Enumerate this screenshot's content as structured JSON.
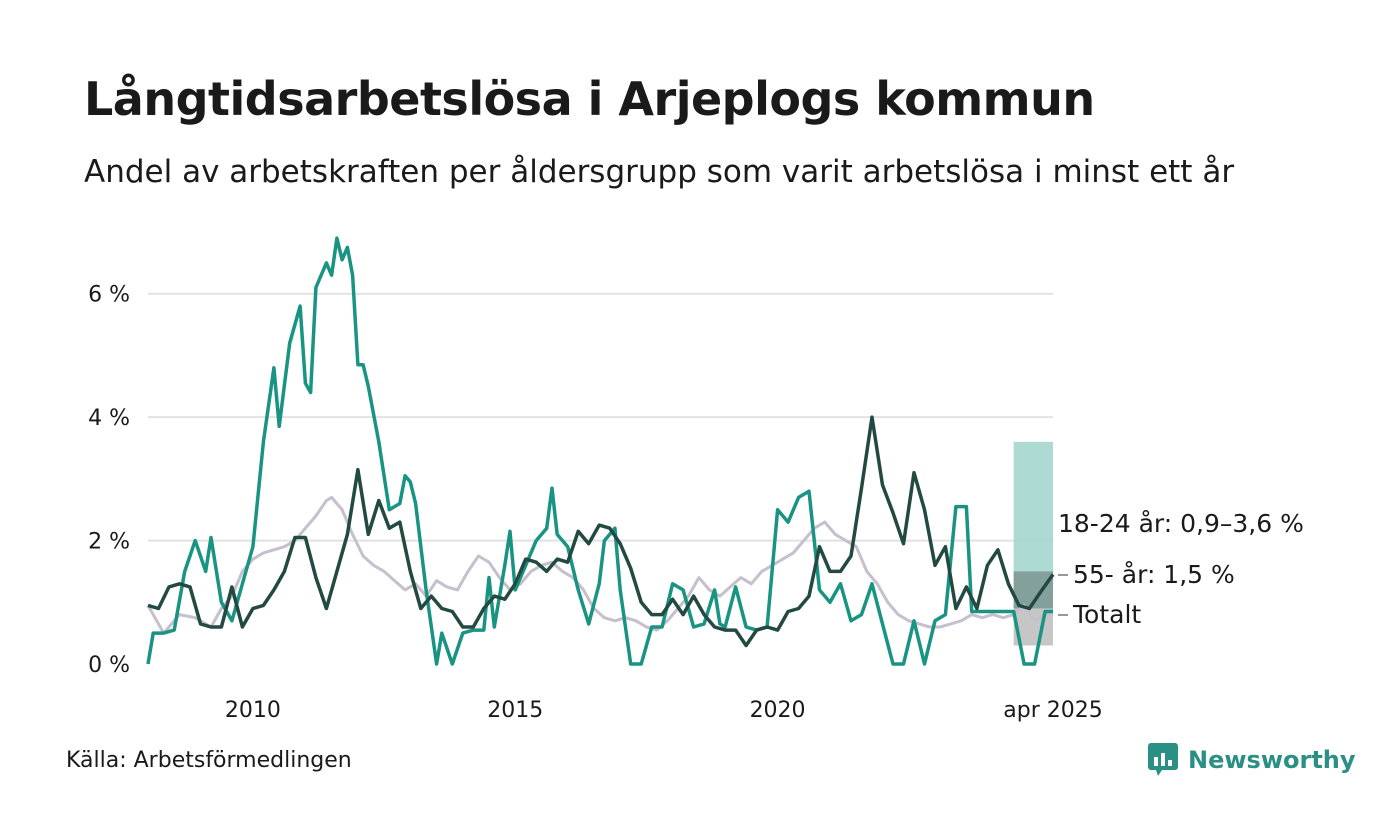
{
  "title": "Långtidsarbetslösa i Arjeplogs kommun",
  "subtitle": "Andel av arbetskraften per åldersgrupp som varit arbetslösa i minst ett år",
  "source": "Källa: Arbetsförmedlingen",
  "brand": "Newsworthy",
  "colors": {
    "youth": "#1a9482",
    "senior": "#234a42",
    "total": "#c5bfce",
    "youth_band": "#9fd5cd",
    "senior_band": "#7c958f",
    "total_band": "#b3b3b3",
    "grid": "#e2e2e2",
    "brand": "#2a8f84"
  },
  "chart_data": {
    "type": "line",
    "x_unit": "year (decimal)",
    "xlim": [
      2008.0,
      2025.25
    ],
    "ylim": [
      0,
      7
    ],
    "y_ticks": [
      {
        "value": 0,
        "label": "0 %"
      },
      {
        "value": 2,
        "label": "2 %"
      },
      {
        "value": 4,
        "label": "4 %"
      },
      {
        "value": 6,
        "label": "6 %"
      }
    ],
    "x_ticks": [
      {
        "value": 2010,
        "label": "2010"
      },
      {
        "value": 2015,
        "label": "2015"
      },
      {
        "value": 2020,
        "label": "2020"
      },
      {
        "value": 2025.25,
        "label": "apr 2025"
      }
    ],
    "series": [
      {
        "key": "total",
        "label": "Totalt",
        "points": [
          [
            2008.0,
            0.95
          ],
          [
            2008.3,
            0.5
          ],
          [
            2008.6,
            0.8
          ],
          [
            2008.9,
            0.75
          ],
          [
            2009.2,
            0.6
          ],
          [
            2009.4,
            0.9
          ],
          [
            2009.6,
            1.1
          ],
          [
            2009.8,
            1.5
          ],
          [
            2010.0,
            1.7
          ],
          [
            2010.2,
            1.8
          ],
          [
            2010.4,
            1.85
          ],
          [
            2010.6,
            1.9
          ],
          [
            2010.8,
            2.0
          ],
          [
            2011.0,
            2.2
          ],
          [
            2011.2,
            2.4
          ],
          [
            2011.4,
            2.65
          ],
          [
            2011.5,
            2.7
          ],
          [
            2011.7,
            2.5
          ],
          [
            2011.9,
            2.1
          ],
          [
            2012.1,
            1.75
          ],
          [
            2012.3,
            1.6
          ],
          [
            2012.5,
            1.5
          ],
          [
            2012.7,
            1.35
          ],
          [
            2012.9,
            1.2
          ],
          [
            2013.1,
            1.3
          ],
          [
            2013.3,
            1.1
          ],
          [
            2013.5,
            1.35
          ],
          [
            2013.7,
            1.25
          ],
          [
            2013.9,
            1.2
          ],
          [
            2014.1,
            1.5
          ],
          [
            2014.3,
            1.75
          ],
          [
            2014.5,
            1.65
          ],
          [
            2014.7,
            1.4
          ],
          [
            2014.9,
            1.2
          ],
          [
            2015.1,
            1.3
          ],
          [
            2015.3,
            1.5
          ],
          [
            2015.5,
            1.6
          ],
          [
            2015.7,
            1.65
          ],
          [
            2015.9,
            1.5
          ],
          [
            2016.1,
            1.4
          ],
          [
            2016.3,
            1.2
          ],
          [
            2016.5,
            0.9
          ],
          [
            2016.7,
            0.75
          ],
          [
            2016.9,
            0.7
          ],
          [
            2017.1,
            0.75
          ],
          [
            2017.3,
            0.7
          ],
          [
            2017.5,
            0.6
          ],
          [
            2017.7,
            0.55
          ],
          [
            2017.9,
            0.7
          ],
          [
            2018.1,
            0.9
          ],
          [
            2018.3,
            1.1
          ],
          [
            2018.5,
            1.4
          ],
          [
            2018.7,
            1.2
          ],
          [
            2018.9,
            1.1
          ],
          [
            2019.1,
            1.25
          ],
          [
            2019.3,
            1.4
          ],
          [
            2019.5,
            1.3
          ],
          [
            2019.7,
            1.5
          ],
          [
            2019.9,
            1.6
          ],
          [
            2020.1,
            1.7
          ],
          [
            2020.3,
            1.8
          ],
          [
            2020.5,
            2.0
          ],
          [
            2020.7,
            2.2
          ],
          [
            2020.9,
            2.3
          ],
          [
            2021.1,
            2.1
          ],
          [
            2021.3,
            2.0
          ],
          [
            2021.5,
            1.9
          ],
          [
            2021.7,
            1.5
          ],
          [
            2021.9,
            1.3
          ],
          [
            2022.1,
            1.0
          ],
          [
            2022.3,
            0.8
          ],
          [
            2022.5,
            0.7
          ],
          [
            2022.7,
            0.65
          ],
          [
            2022.9,
            0.6
          ],
          [
            2023.1,
            0.6
          ],
          [
            2023.3,
            0.65
          ],
          [
            2023.5,
            0.7
          ],
          [
            2023.7,
            0.8
          ],
          [
            2023.9,
            0.75
          ],
          [
            2024.1,
            0.8
          ],
          [
            2024.3,
            0.75
          ],
          [
            2024.5,
            0.8
          ],
          [
            2024.7,
            0.95
          ],
          [
            2024.9,
            0.7
          ],
          [
            2025.1,
            0.8
          ],
          [
            2025.25,
            0.8
          ]
        ],
        "band": [
          0.3,
          0.9
        ]
      },
      {
        "key": "youth",
        "label": "18-24 år: 0,9–3,6 %",
        "points": [
          [
            2008.0,
            0.0
          ],
          [
            2008.1,
            0.5
          ],
          [
            2008.3,
            0.5
          ],
          [
            2008.5,
            0.55
          ],
          [
            2008.7,
            1.5
          ],
          [
            2008.9,
            2.0
          ],
          [
            2009.1,
            1.5
          ],
          [
            2009.2,
            2.05
          ],
          [
            2009.4,
            1.0
          ],
          [
            2009.6,
            0.7
          ],
          [
            2009.8,
            1.3
          ],
          [
            2010.0,
            1.9
          ],
          [
            2010.2,
            3.6
          ],
          [
            2010.4,
            4.8
          ],
          [
            2010.5,
            3.85
          ],
          [
            2010.7,
            5.2
          ],
          [
            2010.9,
            5.8
          ],
          [
            2011.0,
            4.55
          ],
          [
            2011.1,
            4.4
          ],
          [
            2011.2,
            6.1
          ],
          [
            2011.4,
            6.5
          ],
          [
            2011.5,
            6.3
          ],
          [
            2011.6,
            6.9
          ],
          [
            2011.7,
            6.55
          ],
          [
            2011.8,
            6.75
          ],
          [
            2011.9,
            6.3
          ],
          [
            2012.0,
            4.85
          ],
          [
            2012.1,
            4.85
          ],
          [
            2012.2,
            4.5
          ],
          [
            2012.4,
            3.6
          ],
          [
            2012.6,
            2.5
          ],
          [
            2012.8,
            2.6
          ],
          [
            2012.9,
            3.05
          ],
          [
            2013.0,
            2.95
          ],
          [
            2013.1,
            2.6
          ],
          [
            2013.3,
            1.2
          ],
          [
            2013.5,
            0.0
          ],
          [
            2013.6,
            0.5
          ],
          [
            2013.8,
            0.0
          ],
          [
            2014.0,
            0.5
          ],
          [
            2014.2,
            0.55
          ],
          [
            2014.4,
            0.55
          ],
          [
            2014.5,
            1.4
          ],
          [
            2014.6,
            0.6
          ],
          [
            2014.8,
            1.6
          ],
          [
            2014.9,
            2.15
          ],
          [
            2015.0,
            1.2
          ],
          [
            2015.2,
            1.6
          ],
          [
            2015.4,
            2.0
          ],
          [
            2015.6,
            2.2
          ],
          [
            2015.7,
            2.85
          ],
          [
            2015.8,
            2.1
          ],
          [
            2016.0,
            1.9
          ],
          [
            2016.2,
            1.2
          ],
          [
            2016.4,
            0.65
          ],
          [
            2016.6,
            1.3
          ],
          [
            2016.7,
            2.0
          ],
          [
            2016.9,
            2.2
          ],
          [
            2017.0,
            1.2
          ],
          [
            2017.2,
            0.0
          ],
          [
            2017.4,
            0.0
          ],
          [
            2017.6,
            0.6
          ],
          [
            2017.8,
            0.6
          ],
          [
            2018.0,
            1.3
          ],
          [
            2018.2,
            1.2
          ],
          [
            2018.4,
            0.6
          ],
          [
            2018.6,
            0.65
          ],
          [
            2018.8,
            1.2
          ],
          [
            2018.9,
            0.65
          ],
          [
            2019.0,
            0.6
          ],
          [
            2019.2,
            1.25
          ],
          [
            2019.4,
            0.6
          ],
          [
            2019.6,
            0.55
          ],
          [
            2019.8,
            0.6
          ],
          [
            2020.0,
            2.5
          ],
          [
            2020.2,
            2.3
          ],
          [
            2020.4,
            2.7
          ],
          [
            2020.6,
            2.8
          ],
          [
            2020.8,
            1.2
          ],
          [
            2021.0,
            1.0
          ],
          [
            2021.2,
            1.3
          ],
          [
            2021.4,
            0.7
          ],
          [
            2021.6,
            0.8
          ],
          [
            2021.8,
            1.3
          ],
          [
            2022.0,
            0.65
          ],
          [
            2022.2,
            0.0
          ],
          [
            2022.4,
            0.0
          ],
          [
            2022.6,
            0.7
          ],
          [
            2022.8,
            0.0
          ],
          [
            2023.0,
            0.7
          ],
          [
            2023.2,
            0.8
          ],
          [
            2023.4,
            2.55
          ],
          [
            2023.6,
            2.55
          ],
          [
            2023.7,
            0.85
          ],
          [
            2023.9,
            0.85
          ],
          [
            2024.1,
            0.85
          ],
          [
            2024.3,
            0.85
          ],
          [
            2024.5,
            0.85
          ],
          [
            2024.7,
            0.0
          ],
          [
            2024.9,
            0.0
          ],
          [
            2025.1,
            0.85
          ],
          [
            2025.25,
            0.85
          ]
        ],
        "band": [
          0.9,
          3.6
        ]
      },
      {
        "key": "senior",
        "label": "55- år: 1,5 %",
        "points": [
          [
            2008.0,
            0.95
          ],
          [
            2008.2,
            0.9
          ],
          [
            2008.4,
            1.25
          ],
          [
            2008.6,
            1.3
          ],
          [
            2008.8,
            1.25
          ],
          [
            2009.0,
            0.65
          ],
          [
            2009.2,
            0.6
          ],
          [
            2009.4,
            0.6
          ],
          [
            2009.6,
            1.25
          ],
          [
            2009.8,
            0.6
          ],
          [
            2010.0,
            0.9
          ],
          [
            2010.2,
            0.95
          ],
          [
            2010.4,
            1.2
          ],
          [
            2010.6,
            1.5
          ],
          [
            2010.8,
            2.05
          ],
          [
            2011.0,
            2.05
          ],
          [
            2011.2,
            1.4
          ],
          [
            2011.4,
            0.9
          ],
          [
            2011.6,
            1.5
          ],
          [
            2011.8,
            2.1
          ],
          [
            2012.0,
            3.15
          ],
          [
            2012.2,
            2.1
          ],
          [
            2012.4,
            2.65
          ],
          [
            2012.6,
            2.2
          ],
          [
            2012.8,
            2.3
          ],
          [
            2013.0,
            1.5
          ],
          [
            2013.2,
            0.9
          ],
          [
            2013.4,
            1.1
          ],
          [
            2013.6,
            0.9
          ],
          [
            2013.8,
            0.85
          ],
          [
            2014.0,
            0.6
          ],
          [
            2014.2,
            0.6
          ],
          [
            2014.4,
            0.9
          ],
          [
            2014.6,
            1.1
          ],
          [
            2014.8,
            1.05
          ],
          [
            2015.0,
            1.3
          ],
          [
            2015.2,
            1.7
          ],
          [
            2015.4,
            1.65
          ],
          [
            2015.6,
            1.5
          ],
          [
            2015.8,
            1.7
          ],
          [
            2016.0,
            1.65
          ],
          [
            2016.2,
            2.15
          ],
          [
            2016.4,
            1.95
          ],
          [
            2016.6,
            2.25
          ],
          [
            2016.8,
            2.2
          ],
          [
            2017.0,
            1.95
          ],
          [
            2017.2,
            1.55
          ],
          [
            2017.4,
            1.0
          ],
          [
            2017.6,
            0.8
          ],
          [
            2017.8,
            0.8
          ],
          [
            2018.0,
            1.05
          ],
          [
            2018.2,
            0.8
          ],
          [
            2018.4,
            1.1
          ],
          [
            2018.6,
            0.8
          ],
          [
            2018.8,
            0.6
          ],
          [
            2019.0,
            0.55
          ],
          [
            2019.2,
            0.55
          ],
          [
            2019.4,
            0.3
          ],
          [
            2019.6,
            0.55
          ],
          [
            2019.8,
            0.6
          ],
          [
            2020.0,
            0.55
          ],
          [
            2020.2,
            0.85
          ],
          [
            2020.4,
            0.9
          ],
          [
            2020.6,
            1.1
          ],
          [
            2020.8,
            1.9
          ],
          [
            2021.0,
            1.5
          ],
          [
            2021.2,
            1.5
          ],
          [
            2021.4,
            1.75
          ],
          [
            2021.6,
            2.85
          ],
          [
            2021.8,
            4.0
          ],
          [
            2022.0,
            2.9
          ],
          [
            2022.2,
            2.45
          ],
          [
            2022.4,
            1.95
          ],
          [
            2022.6,
            3.1
          ],
          [
            2022.8,
            2.5
          ],
          [
            2023.0,
            1.6
          ],
          [
            2023.2,
            1.9
          ],
          [
            2023.4,
            0.9
          ],
          [
            2023.6,
            1.25
          ],
          [
            2023.8,
            0.9
          ],
          [
            2024.0,
            1.6
          ],
          [
            2024.2,
            1.85
          ],
          [
            2024.4,
            1.3
          ],
          [
            2024.6,
            0.95
          ],
          [
            2024.8,
            0.9
          ],
          [
            2025.0,
            1.15
          ],
          [
            2025.25,
            1.45
          ]
        ],
        "band": [
          0.9,
          1.5
        ]
      }
    ]
  }
}
